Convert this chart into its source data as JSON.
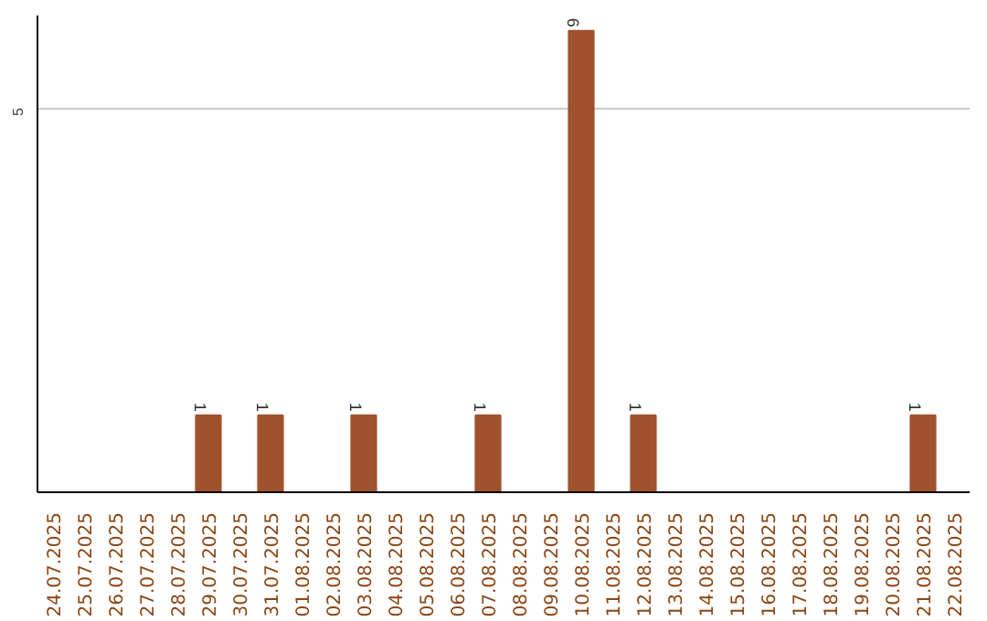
{
  "chart_data": {
    "type": "bar",
    "categories": [
      "24.07.2025",
      "25.07.2025",
      "26.07.2025",
      "27.07.2025",
      "28.07.2025",
      "29.07.2025",
      "30.07.2025",
      "31.07.2025",
      "01.08.2025",
      "02.08.2025",
      "03.08.2025",
      "04.08.2025",
      "05.08.2025",
      "06.08.2025",
      "07.08.2025",
      "08.08.2025",
      "09.08.2025",
      "10.08.2025",
      "11.08.2025",
      "12.08.2025",
      "13.08.2025",
      "14.08.2025",
      "15.08.2025",
      "16.08.2025",
      "17.08.2025",
      "18.08.2025",
      "19.08.2025",
      "20.08.2025",
      "21.08.2025",
      "22.08.2025"
    ],
    "values": [
      0,
      0,
      0,
      0,
      0,
      1,
      0,
      1,
      0,
      0,
      1,
      0,
      0,
      0,
      1,
      0,
      0,
      6,
      0,
      1,
      0,
      0,
      0,
      0,
      0,
      0,
      0,
      0,
      1,
      0
    ],
    "value_labels": [
      null,
      null,
      null,
      null,
      null,
      "1",
      null,
      "1",
      null,
      null,
      "1",
      null,
      null,
      null,
      "1",
      null,
      null,
      "6",
      null,
      "1",
      null,
      null,
      null,
      null,
      null,
      null,
      null,
      null,
      "1",
      null
    ],
    "color": "#a0522d",
    "ylim": [
      0,
      6.2
    ],
    "yticks": [
      5
    ],
    "grid": "y"
  }
}
